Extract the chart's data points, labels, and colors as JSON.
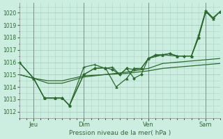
{
  "background_color": "#cceee0",
  "grid_color": "#aad4c4",
  "line_color": "#2d6a2d",
  "xlabel": "Pression niveau de la mer( hPa )",
  "ylim": [
    1011.5,
    1020.8
  ],
  "yticks": [
    1012,
    1013,
    1014,
    1015,
    1016,
    1017,
    1018,
    1019,
    1020
  ],
  "xlim": [
    0,
    28
  ],
  "xtick_labels": [
    "Jeu",
    "Dim",
    "Ven",
    "Sam"
  ],
  "xtick_positions": [
    2,
    9,
    18,
    26
  ],
  "line1": {
    "x": [
      0,
      2,
      4,
      6,
      9,
      12,
      15,
      18,
      20,
      22,
      24,
      26,
      28
    ],
    "y": [
      1015.0,
      1014.7,
      1014.5,
      1014.5,
      1014.9,
      1015.0,
      1015.1,
      1015.3,
      1015.5,
      1015.6,
      1015.7,
      1015.8,
      1015.9
    ]
  },
  "line2": {
    "x": [
      0,
      2,
      4,
      6,
      9,
      12,
      15,
      18,
      20,
      22,
      24,
      26,
      28
    ],
    "y": [
      1015.0,
      1014.7,
      1014.3,
      1014.3,
      1014.8,
      1015.0,
      1015.2,
      1015.5,
      1015.9,
      1016.0,
      1016.1,
      1016.2,
      1016.3
    ]
  },
  "line3_diamond": {
    "x": [
      0,
      2,
      3.5,
      5,
      6,
      7,
      9,
      10.5,
      12,
      13,
      14,
      15,
      16,
      17,
      18,
      19,
      20,
      21,
      22,
      23,
      24,
      25,
      26,
      27,
      28
    ],
    "y": [
      1016.0,
      1014.7,
      1013.1,
      1013.1,
      1013.1,
      1012.5,
      1015.0,
      1015.5,
      1015.55,
      1015.4,
      1015.0,
      1015.5,
      1014.7,
      1015.0,
      1016.3,
      1016.6,
      1016.6,
      1016.7,
      1016.5,
      1016.5,
      1016.5,
      1018.0,
      1020.1,
      1019.6,
      1020.1
    ]
  },
  "line4_cross": {
    "x": [
      0,
      2,
      3.5,
      5,
      6,
      7,
      9,
      10.5,
      12,
      13,
      14,
      15,
      16,
      17,
      18,
      19,
      20,
      21,
      22,
      23,
      24,
      25,
      26,
      27
    ],
    "y": [
      1016.0,
      1014.7,
      1013.1,
      1013.1,
      1013.1,
      1012.5,
      1015.6,
      1015.8,
      1015.5,
      1015.6,
      1015.0,
      1015.5,
      1015.4,
      1015.5,
      1016.3,
      1016.55,
      1016.6,
      1016.7,
      1016.5,
      1016.5,
      1016.5,
      1018.2,
      1020.2,
      1019.6
    ]
  },
  "line5_triangle": {
    "x": [
      0,
      2,
      3.5,
      5,
      6,
      7,
      9,
      10.5,
      12,
      13.5,
      15,
      16,
      17,
      18,
      20,
      22,
      24,
      25,
      26,
      27,
      28
    ],
    "y": [
      1016.0,
      1014.7,
      1013.1,
      1013.1,
      1013.1,
      1012.5,
      1015.0,
      1015.5,
      1015.55,
      1014.0,
      1014.7,
      1015.5,
      1015.5,
      1016.3,
      1016.6,
      1016.5,
      1016.5,
      1018.0,
      1020.1,
      1019.5,
      1020.1
    ]
  }
}
